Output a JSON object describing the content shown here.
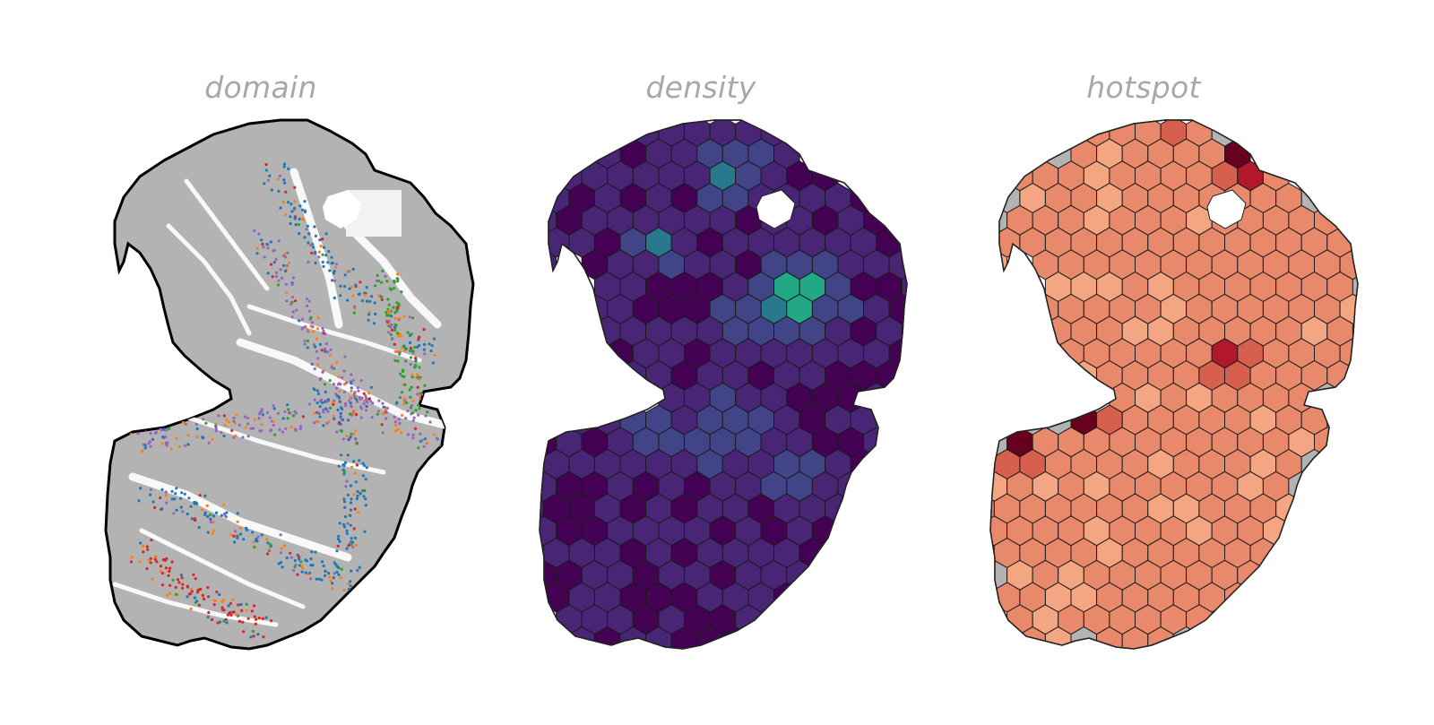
{
  "titles": {
    "domain": "domain",
    "density": "density",
    "hotspot": "hotspot"
  },
  "colors": {
    "tissue_background": "#b3b3b3",
    "tissue_light": "#d9d9d9",
    "hex_border": "#1a1a1a",
    "density_ramp": [
      "#440154",
      "#482575",
      "#414487",
      "#2a788e",
      "#22a884",
      "#7ad151"
    ],
    "hotspot_ramp": [
      "#b3b3b3",
      "#f4a582",
      "#e8896c",
      "#d6604d",
      "#b2182b",
      "#67001f"
    ],
    "domain_point_colors": [
      "#9467bd",
      "#1f77b4",
      "#ff7f0e",
      "#2ca02c",
      "#d62728",
      "#8c564b"
    ]
  }
}
